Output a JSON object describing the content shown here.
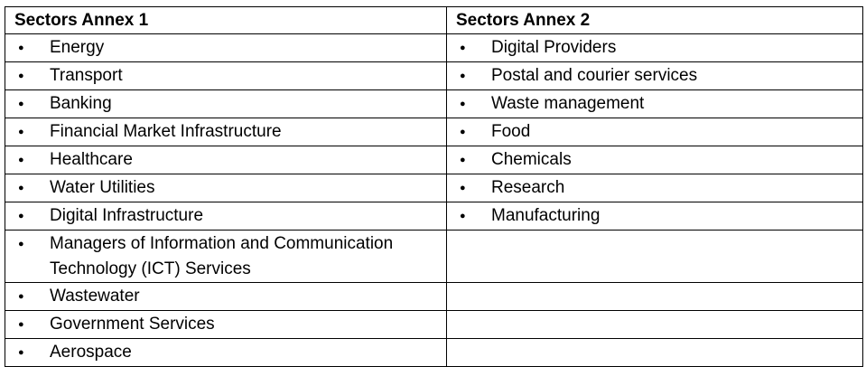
{
  "table": {
    "header": [
      "Sectors Annex 1",
      "Sectors Annex 2"
    ],
    "rows": [
      [
        "Energy",
        "Digital Providers"
      ],
      [
        "Transport",
        "Postal and courier services"
      ],
      [
        "Banking",
        "Waste management"
      ],
      [
        "Financial Market Infrastructure",
        "Food"
      ],
      [
        "Healthcare",
        "Chemicals"
      ],
      [
        "Water Utilities",
        "Research"
      ],
      [
        "Digital Infrastructure",
        "Manufacturing"
      ],
      [
        "Managers of Information and Communication Technology (ICT) Services",
        null
      ],
      [
        "Wastewater",
        null
      ],
      [
        "Government Services",
        null
      ],
      [
        "Aerospace",
        null
      ]
    ]
  }
}
